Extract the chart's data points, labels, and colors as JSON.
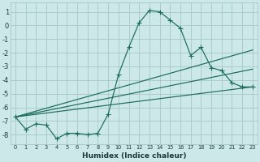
{
  "title": "",
  "xlabel": "Humidex (Indice chaleur)",
  "ylabel": "",
  "bg_color": "#cce8e8",
  "grid_color": "#aacccc",
  "line_color": "#1a6b5a",
  "xlim": [
    -0.5,
    23.5
  ],
  "ylim": [
    -8.7,
    1.7
  ],
  "xticks": [
    0,
    1,
    2,
    3,
    4,
    5,
    6,
    7,
    8,
    9,
    10,
    11,
    12,
    13,
    14,
    15,
    16,
    17,
    18,
    19,
    20,
    21,
    22,
    23
  ],
  "yticks": [
    1,
    0,
    -1,
    -2,
    -3,
    -4,
    -5,
    -6,
    -7,
    -8
  ],
  "series1_x": [
    0,
    1,
    2,
    3,
    4,
    5,
    6,
    7,
    8,
    9,
    10,
    11,
    12,
    13,
    14,
    15,
    16,
    17,
    18,
    19,
    20,
    21,
    22,
    23
  ],
  "series1_y": [
    -6.7,
    -7.6,
    -7.2,
    -7.3,
    -8.3,
    -7.9,
    -7.9,
    -8.0,
    -7.9,
    -6.5,
    -3.6,
    -1.6,
    0.2,
    1.1,
    1.0,
    0.4,
    -0.2,
    -2.2,
    -1.6,
    -3.1,
    -3.3,
    -4.2,
    -4.5,
    -4.5
  ],
  "series2_x": [
    0,
    23
  ],
  "series2_y": [
    -6.7,
    -1.8
  ],
  "series3_x": [
    0,
    23
  ],
  "series3_y": [
    -6.7,
    -3.2
  ],
  "series4_x": [
    0,
    23
  ],
  "series4_y": [
    -6.7,
    -4.5
  ]
}
